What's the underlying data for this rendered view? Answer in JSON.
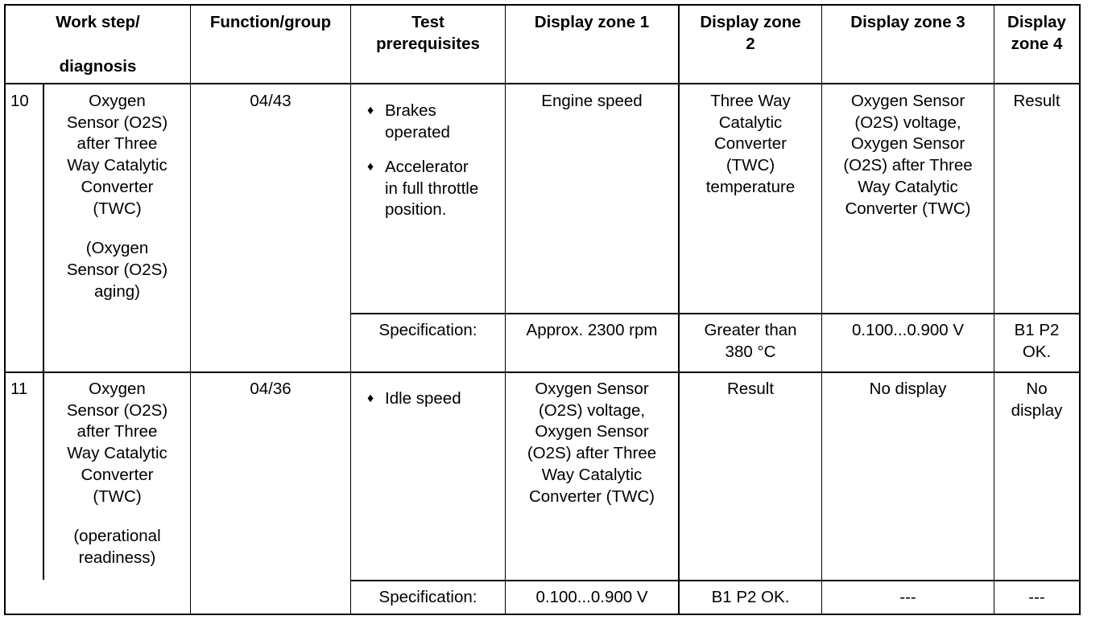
{
  "headers": {
    "work_step_line1": "Work step/",
    "work_step_line2": "diagnosis",
    "function_group": "Function/group",
    "test_prereq_line1": "Test",
    "test_prereq_line2": "prerequisites",
    "zone1": "Display zone 1",
    "zone2_line1": "Display zone",
    "zone2_line2": "2",
    "zone3": "Display zone 3",
    "zone4_line1": "Display",
    "zone4_line2": "zone 4"
  },
  "rows": [
    {
      "step": "10",
      "diagnosis_lines": [
        "Oxygen",
        "Sensor (O2S)",
        "after Three",
        "Way Catalytic",
        "Converter",
        "(TWC)"
      ],
      "diagnosis_note_lines": [
        "(Oxygen",
        "Sensor (O2S)",
        "aging)"
      ],
      "function_group": "04/43",
      "prereq_bullets": [
        [
          "Brakes",
          "operated"
        ],
        [
          "Accelerator",
          "in full throttle",
          "position."
        ]
      ],
      "zone1_lines": [
        "Engine speed"
      ],
      "zone2_lines": [
        "Three Way",
        "Catalytic",
        "Converter",
        "(TWC)",
        "temperature"
      ],
      "zone3_lines": [
        "Oxygen Sensor",
        "(O2S) voltage,",
        "Oxygen Sensor",
        "(O2S) after Three",
        "Way Catalytic",
        "Converter (TWC)"
      ],
      "zone4_lines": [
        "Result"
      ],
      "spec_label": "Specification:",
      "spec_zone1": [
        "Approx. 2300 rpm"
      ],
      "spec_zone2": [
        "Greater than",
        "380 °C"
      ],
      "spec_zone3": [
        "0.100...0.900 V"
      ],
      "spec_zone4": [
        "B1 P2",
        "OK."
      ]
    },
    {
      "step": "11",
      "diagnosis_lines": [
        "Oxygen",
        "Sensor (O2S)",
        "after Three",
        "Way Catalytic",
        "Converter",
        "(TWC)"
      ],
      "diagnosis_note_lines": [
        "(operational",
        "readiness)"
      ],
      "function_group": "04/36",
      "prereq_bullets": [
        [
          "Idle speed"
        ]
      ],
      "zone1_lines": [
        "Oxygen Sensor",
        "(O2S) voltage,",
        "Oxygen Sensor",
        "(O2S) after Three",
        "Way Catalytic",
        "Converter (TWC)"
      ],
      "zone2_lines": [
        "Result"
      ],
      "zone3_lines": [
        "No display"
      ],
      "zone4_lines": [
        "No",
        "display"
      ],
      "spec_label": "Specification:",
      "spec_zone1": [
        "0.100...0.900 V"
      ],
      "spec_zone2": [
        "B1 P2 OK."
      ],
      "spec_zone3": [
        "---"
      ],
      "spec_zone4": [
        "---"
      ]
    }
  ]
}
